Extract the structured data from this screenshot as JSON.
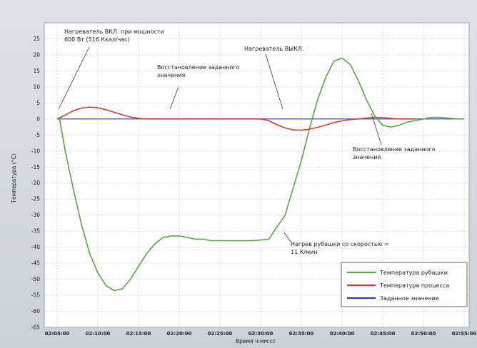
{
  "chart_data": {
    "type": "line",
    "xlabel": "Время ч:мм:сс",
    "ylabel": "Температура (°C)",
    "ylim": [
      -65,
      30
    ],
    "y_ticks": [
      25,
      20,
      15,
      10,
      5,
      0,
      -5,
      -10,
      -15,
      -20,
      -25,
      -30,
      -35,
      -40,
      -45,
      -50,
      -55,
      -60,
      -65
    ],
    "x_ticks": [
      "02:05:00",
      "02:10:00",
      "02:15:00",
      "02:20:00",
      "02:25:00",
      "02:30:00",
      "02:35:00",
      "02:40:00",
      "02:45:00",
      "02:50:00",
      "02:55:00"
    ],
    "xlim": [
      0,
      50
    ],
    "grid": true,
    "legend_position": "bottom-right",
    "series": [
      {
        "name": "Температура рубашки",
        "color": "#56a83c",
        "x": [
          0,
          0.3,
          1,
          2,
          3,
          4,
          5,
          6,
          7,
          8,
          9,
          10,
          11,
          12,
          13,
          14,
          15,
          16,
          17,
          18,
          19,
          20,
          22,
          24,
          26,
          28,
          30,
          31,
          32,
          33,
          34,
          35,
          36,
          37,
          38,
          39,
          40,
          41,
          42,
          43,
          44,
          45,
          46,
          47,
          48,
          49,
          50
        ],
        "y": [
          0,
          0,
          -10,
          -22,
          -33,
          -42,
          -48,
          -52,
          -53.5,
          -53,
          -50,
          -46,
          -42,
          -39,
          -37,
          -36.5,
          -36.5,
          -37,
          -37.5,
          -37.5,
          -38,
          -38,
          -38,
          -38,
          -37.5,
          -30,
          -13,
          -3,
          6,
          13,
          18,
          19,
          17,
          12,
          6,
          1,
          -2,
          -2.5,
          -2,
          -1,
          -0.5,
          0,
          0.5,
          0.5,
          0.3,
          0,
          0
        ]
      },
      {
        "name": "Температура процесса",
        "color": "#d93a2a",
        "x": [
          0,
          1,
          2,
          3,
          4,
          5,
          6,
          7,
          8,
          9,
          10,
          11,
          12,
          13,
          14,
          15,
          16,
          17,
          18,
          19,
          20,
          21,
          22,
          23,
          24,
          25,
          26,
          27,
          28,
          29,
          30,
          31,
          32,
          33,
          34,
          35,
          36,
          37,
          38,
          39,
          40,
          41,
          42,
          43,
          44
        ],
        "y": [
          0,
          1.2,
          2.6,
          3.4,
          3.7,
          3.5,
          2.9,
          2.1,
          1.3,
          0.6,
          0.2,
          0,
          0,
          0,
          0,
          0,
          0,
          0,
          0,
          0,
          0,
          0,
          0,
          0,
          0,
          0,
          -0.5,
          -1.8,
          -2.8,
          -3.4,
          -3.5,
          -3.2,
          -2.6,
          -1.9,
          -1.1,
          -0.6,
          -0.2,
          0,
          0.3,
          0.5,
          0.4,
          0.2,
          0,
          0,
          0
        ]
      },
      {
        "name": "Заданное значение",
        "color": "#2e3aa5",
        "x": [
          0,
          50
        ],
        "y": [
          0,
          0
        ]
      }
    ],
    "annotations": [
      {
        "key": "a1",
        "lines": [
          "Нагреватель ВКЛ. при мощности",
          "600 Вт (516 Ккал/час)"
        ]
      },
      {
        "key": "a2",
        "lines": [
          "Восстановление заданного",
          "значения"
        ]
      },
      {
        "key": "a3",
        "lines": [
          "Нагреватель ВЫКЛ."
        ]
      },
      {
        "key": "a4",
        "lines": [
          "Восстановление заданного",
          "значения"
        ]
      },
      {
        "key": "a5",
        "lines": [
          "Нагрев рубашки со скоростью =",
          "11 К/мин"
        ]
      }
    ]
  }
}
